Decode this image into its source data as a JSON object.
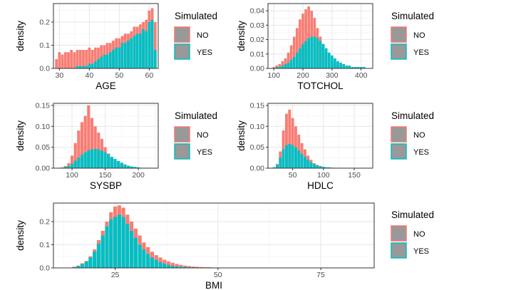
{
  "chart_data": [
    {
      "type": "bar",
      "xlabel": "AGE",
      "ylabel": "density",
      "xlim": [
        28,
        63
      ],
      "ylim": [
        0,
        0.28
      ],
      "xticks": [
        30,
        40,
        50,
        60
      ],
      "yticks": [
        0.0,
        0.1,
        0.2
      ],
      "ytick_labels": [
        "0.0",
        "0.1",
        "0.2"
      ],
      "legend_title": "Simulated",
      "legend": [
        "NO",
        "YES"
      ],
      "colors": {
        "NO": "#F8766D",
        "YES": "#00BFC4"
      },
      "x": [
        29,
        30,
        31,
        32,
        33,
        34,
        35,
        36,
        37,
        38,
        39,
        40,
        41,
        42,
        43,
        44,
        45,
        46,
        47,
        48,
        49,
        50,
        51,
        52,
        53,
        54,
        55,
        56,
        57,
        58,
        59,
        60,
        61,
        62
      ],
      "series": [
        {
          "name": "NO",
          "values": [
            0.04,
            0.07,
            0.06,
            0.07,
            0.07,
            0.08,
            0.07,
            0.08,
            0.08,
            0.08,
            0.08,
            0.09,
            0.08,
            0.09,
            0.09,
            0.1,
            0.1,
            0.11,
            0.11,
            0.12,
            0.13,
            0.13,
            0.14,
            0.15,
            0.15,
            0.16,
            0.18,
            0.18,
            0.19,
            0.2,
            0.21,
            0.25,
            0.26,
            0.2
          ]
        },
        {
          "name": "YES",
          "values": [
            0.0,
            0.0,
            0.0,
            0.0,
            0.0,
            0.0,
            0.0,
            0.01,
            0.01,
            0.01,
            0.01,
            0.02,
            0.02,
            0.03,
            0.04,
            0.05,
            0.06,
            0.06,
            0.07,
            0.08,
            0.09,
            0.09,
            0.11,
            0.11,
            0.12,
            0.13,
            0.14,
            0.15,
            0.15,
            0.17,
            0.16,
            0.2,
            0.21,
            0.08
          ]
        }
      ]
    },
    {
      "type": "bar",
      "xlabel": "TOTCHOL",
      "ylabel": "density",
      "xlim": [
        80,
        440
      ],
      "ylim": [
        0,
        0.045
      ],
      "xticks": [
        100,
        200,
        300,
        400
      ],
      "yticks": [
        0.0,
        0.01,
        0.02,
        0.03,
        0.04
      ],
      "ytick_labels": [
        "0.00",
        "0.01",
        "0.02",
        "0.03",
        "0.04"
      ],
      "legend_title": "Simulated",
      "legend": [
        "NO",
        "YES"
      ],
      "colors": {
        "NO": "#F8766D",
        "YES": "#00BFC4"
      },
      "x": [
        100,
        110,
        120,
        130,
        140,
        150,
        160,
        170,
        180,
        190,
        200,
        210,
        220,
        230,
        240,
        250,
        260,
        270,
        280,
        290,
        300,
        310,
        320,
        330,
        340,
        350,
        360,
        370,
        380,
        390,
        400,
        410,
        420
      ],
      "series": [
        {
          "name": "NO",
          "values": [
            0.001,
            0.002,
            0.003,
            0.005,
            0.007,
            0.011,
            0.016,
            0.022,
            0.028,
            0.034,
            0.038,
            0.041,
            0.043,
            0.04,
            0.035,
            0.028,
            0.022,
            0.016,
            0.011,
            0.008,
            0.005,
            0.003,
            0.002,
            0.001,
            0.001,
            0.0,
            0.0,
            0.0,
            0.0,
            0.0,
            0.0,
            0.0,
            0.0
          ]
        },
        {
          "name": "YES",
          "values": [
            0.0,
            0.001,
            0.001,
            0.002,
            0.003,
            0.004,
            0.006,
            0.008,
            0.011,
            0.014,
            0.017,
            0.019,
            0.021,
            0.022,
            0.022,
            0.021,
            0.019,
            0.017,
            0.014,
            0.011,
            0.009,
            0.007,
            0.005,
            0.004,
            0.003,
            0.002,
            0.002,
            0.001,
            0.001,
            0.001,
            0.001,
            0.001,
            0.0
          ]
        }
      ]
    },
    {
      "type": "bar",
      "xlabel": "SYSBP",
      "ylabel": "density",
      "xlim": [
        72,
        230
      ],
      "ylim": [
        0,
        0.155
      ],
      "xticks": [
        100,
        150,
        200
      ],
      "yticks": [
        0.0,
        0.05,
        0.1,
        0.15
      ],
      "ytick_labels": [
        "0.00",
        "0.05",
        "0.10",
        "0.15"
      ],
      "legend_title": "Simulated",
      "legend": [
        "NO",
        "YES"
      ],
      "colors": {
        "NO": "#F8766D",
        "YES": "#00BFC4"
      },
      "x": [
        85,
        90,
        95,
        100,
        105,
        110,
        115,
        120,
        125,
        130,
        135,
        140,
        145,
        150,
        155,
        160,
        165,
        170,
        175,
        180,
        185,
        190,
        195,
        200,
        205,
        210,
        215,
        220
      ],
      "series": [
        {
          "name": "NO",
          "values": [
            0.002,
            0.005,
            0.012,
            0.03,
            0.06,
            0.09,
            0.11,
            0.125,
            0.15,
            0.12,
            0.1,
            0.085,
            0.07,
            0.05,
            0.035,
            0.025,
            0.018,
            0.012,
            0.008,
            0.005,
            0.003,
            0.002,
            0.001,
            0.001,
            0.0,
            0.0,
            0.0,
            0.0
          ]
        },
        {
          "name": "YES",
          "values": [
            0.001,
            0.003,
            0.005,
            0.01,
            0.018,
            0.025,
            0.032,
            0.038,
            0.043,
            0.045,
            0.046,
            0.045,
            0.042,
            0.038,
            0.033,
            0.027,
            0.022,
            0.017,
            0.013,
            0.009,
            0.006,
            0.004,
            0.003,
            0.002,
            0.001,
            0.001,
            0.001,
            0.0
          ]
        }
      ]
    },
    {
      "type": "bar",
      "xlabel": "HDLC",
      "ylabel": "density",
      "xlim": [
        10,
        180
      ],
      "ylim": [
        0,
        0.155
      ],
      "xticks": [
        50,
        100,
        150
      ],
      "yticks": [
        0.0,
        0.05,
        0.1,
        0.15
      ],
      "ytick_labels": [
        "0.00",
        "0.05",
        "0.10",
        "0.15"
      ],
      "legend_title": "Simulated",
      "legend": [
        "NO",
        "YES"
      ],
      "colors": {
        "NO": "#F8766D",
        "YES": "#00BFC4"
      },
      "x": [
        20,
        25,
        30,
        35,
        40,
        45,
        50,
        55,
        60,
        65,
        70,
        75,
        80,
        85,
        90,
        95,
        100,
        105,
        110,
        115,
        120,
        125,
        130,
        140,
        150,
        160,
        170
      ],
      "series": [
        {
          "name": "NO",
          "values": [
            0.002,
            0.01,
            0.04,
            0.09,
            0.13,
            0.14,
            0.12,
            0.1,
            0.08,
            0.06,
            0.045,
            0.03,
            0.02,
            0.012,
            0.008,
            0.005,
            0.003,
            0.002,
            0.001,
            0.001,
            0.0,
            0.0,
            0.0,
            0.0,
            0.0,
            0.0,
            0.0
          ]
        },
        {
          "name": "YES",
          "values": [
            0.002,
            0.008,
            0.025,
            0.045,
            0.055,
            0.058,
            0.055,
            0.05,
            0.042,
            0.034,
            0.027,
            0.02,
            0.014,
            0.01,
            0.007,
            0.005,
            0.003,
            0.002,
            0.002,
            0.001,
            0.001,
            0.001,
            0.0,
            0.0,
            0.0,
            0.0,
            0.0
          ]
        }
      ]
    },
    {
      "type": "bar",
      "xlabel": "BMI",
      "ylabel": "density",
      "xlim": [
        10,
        88
      ],
      "ylim": [
        0,
        0.28
      ],
      "xticks": [
        25,
        50,
        75
      ],
      "yticks": [
        0.0,
        0.1,
        0.2
      ],
      "ytick_labels": [
        "0.0",
        "0.1",
        "0.2"
      ],
      "legend_title": "Simulated",
      "legend": [
        "NO",
        "YES"
      ],
      "colors": {
        "NO": "#F8766D",
        "YES": "#00BFC4"
      },
      "x": [
        15,
        16,
        17,
        18,
        19,
        20,
        21,
        22,
        23,
        24,
        25,
        26,
        27,
        28,
        29,
        30,
        31,
        32,
        33,
        34,
        35,
        36,
        37,
        38,
        39,
        40,
        41,
        42,
        43,
        44,
        45,
        46,
        47,
        48,
        49,
        50,
        52,
        55,
        60,
        65,
        70,
        75,
        80,
        85
      ],
      "series": [
        {
          "name": "NO",
          "values": [
            0.005,
            0.01,
            0.02,
            0.03,
            0.05,
            0.08,
            0.12,
            0.16,
            0.2,
            0.24,
            0.265,
            0.27,
            0.26,
            0.23,
            0.2,
            0.17,
            0.14,
            0.11,
            0.09,
            0.07,
            0.055,
            0.045,
            0.035,
            0.028,
            0.022,
            0.017,
            0.013,
            0.01,
            0.008,
            0.006,
            0.005,
            0.004,
            0.003,
            0.003,
            0.002,
            0.002,
            0.001,
            0.001,
            0.001,
            0.0,
            0.0,
            0.0,
            0.0,
            0.0
          ]
        },
        {
          "name": "YES",
          "values": [
            0.003,
            0.008,
            0.016,
            0.028,
            0.045,
            0.07,
            0.105,
            0.14,
            0.18,
            0.21,
            0.22,
            0.23,
            0.22,
            0.19,
            0.16,
            0.13,
            0.1,
            0.08,
            0.06,
            0.045,
            0.035,
            0.025,
            0.018,
            0.013,
            0.009,
            0.007,
            0.005,
            0.004,
            0.003,
            0.002,
            0.002,
            0.001,
            0.001,
            0.001,
            0.001,
            0.001,
            0.0,
            0.0,
            0.0,
            0.0,
            0.0,
            0.0,
            0.0,
            0.0
          ]
        }
      ]
    }
  ]
}
